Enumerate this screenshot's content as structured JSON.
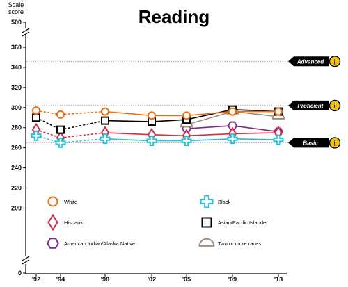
{
  "chart_data": {
    "type": "line",
    "title": "Reading",
    "ylabel": "Scale score",
    "ylabel_lines": [
      "Scale",
      "score"
    ],
    "x": [
      "'92",
      "'94",
      "'98",
      "'02",
      "'05",
      "'09",
      "'13"
    ],
    "x_years": [
      1992,
      1994,
      1998,
      2002,
      2005,
      2009,
      2013
    ],
    "y_ticks": [
      0,
      200,
      220,
      240,
      260,
      280,
      300,
      320,
      340,
      360,
      500
    ],
    "ylim": [
      195,
      370
    ],
    "axis_breaks": [
      "between 0 and 200",
      "between 360 and 500"
    ],
    "grid": false,
    "achievement_levels": [
      {
        "name": "Advanced",
        "value": 346,
        "info": "i"
      },
      {
        "name": "Proficient",
        "value": 302,
        "info": "i"
      },
      {
        "name": "Basic",
        "value": 265,
        "info": "i"
      }
    ],
    "series": [
      {
        "name": "White",
        "color": "#f26a0a",
        "marker": "circle",
        "values": [
          297,
          293,
          296,
          292,
          292,
          296,
          296
        ],
        "dashed_until_index": 2
      },
      {
        "name": "Black",
        "color": "#1ec3e0",
        "marker": "cross",
        "values": [
          272,
          265,
          269,
          267,
          267,
          269,
          268
        ],
        "dashed_until_index": 2
      },
      {
        "name": "Hispanic",
        "color": "#e3263f",
        "marker": "diamond",
        "values": [
          278,
          270,
          275,
          273,
          272,
          274,
          275
        ],
        "dashed_until_index": 2
      },
      {
        "name": "Asian/Pacific Islander",
        "color": "#000000",
        "marker": "square",
        "values": [
          290,
          278,
          287,
          286,
          288,
          298,
          296
        ],
        "dashed_until_index": 2
      },
      {
        "name": "American Indian/Alaska Native",
        "color": "#7a2a8e",
        "marker": "hexagon",
        "values": [
          null,
          null,
          null,
          null,
          279,
          282,
          276
        ],
        "dashed_until_index": -1
      },
      {
        "name": "Two or more races",
        "color": "#a08c78",
        "marker": "arch",
        "values": [
          null,
          null,
          null,
          null,
          283,
          296,
          291
        ],
        "dashed_until_index": -1
      }
    ],
    "legend": {
      "placement": "bottom-inside",
      "rows": [
        [
          "White",
          "Black"
        ],
        [
          "Hispanic",
          "Asian/Pacific Islander"
        ],
        [
          "American Indian/Alaska Native",
          "Two or more races"
        ]
      ]
    }
  }
}
